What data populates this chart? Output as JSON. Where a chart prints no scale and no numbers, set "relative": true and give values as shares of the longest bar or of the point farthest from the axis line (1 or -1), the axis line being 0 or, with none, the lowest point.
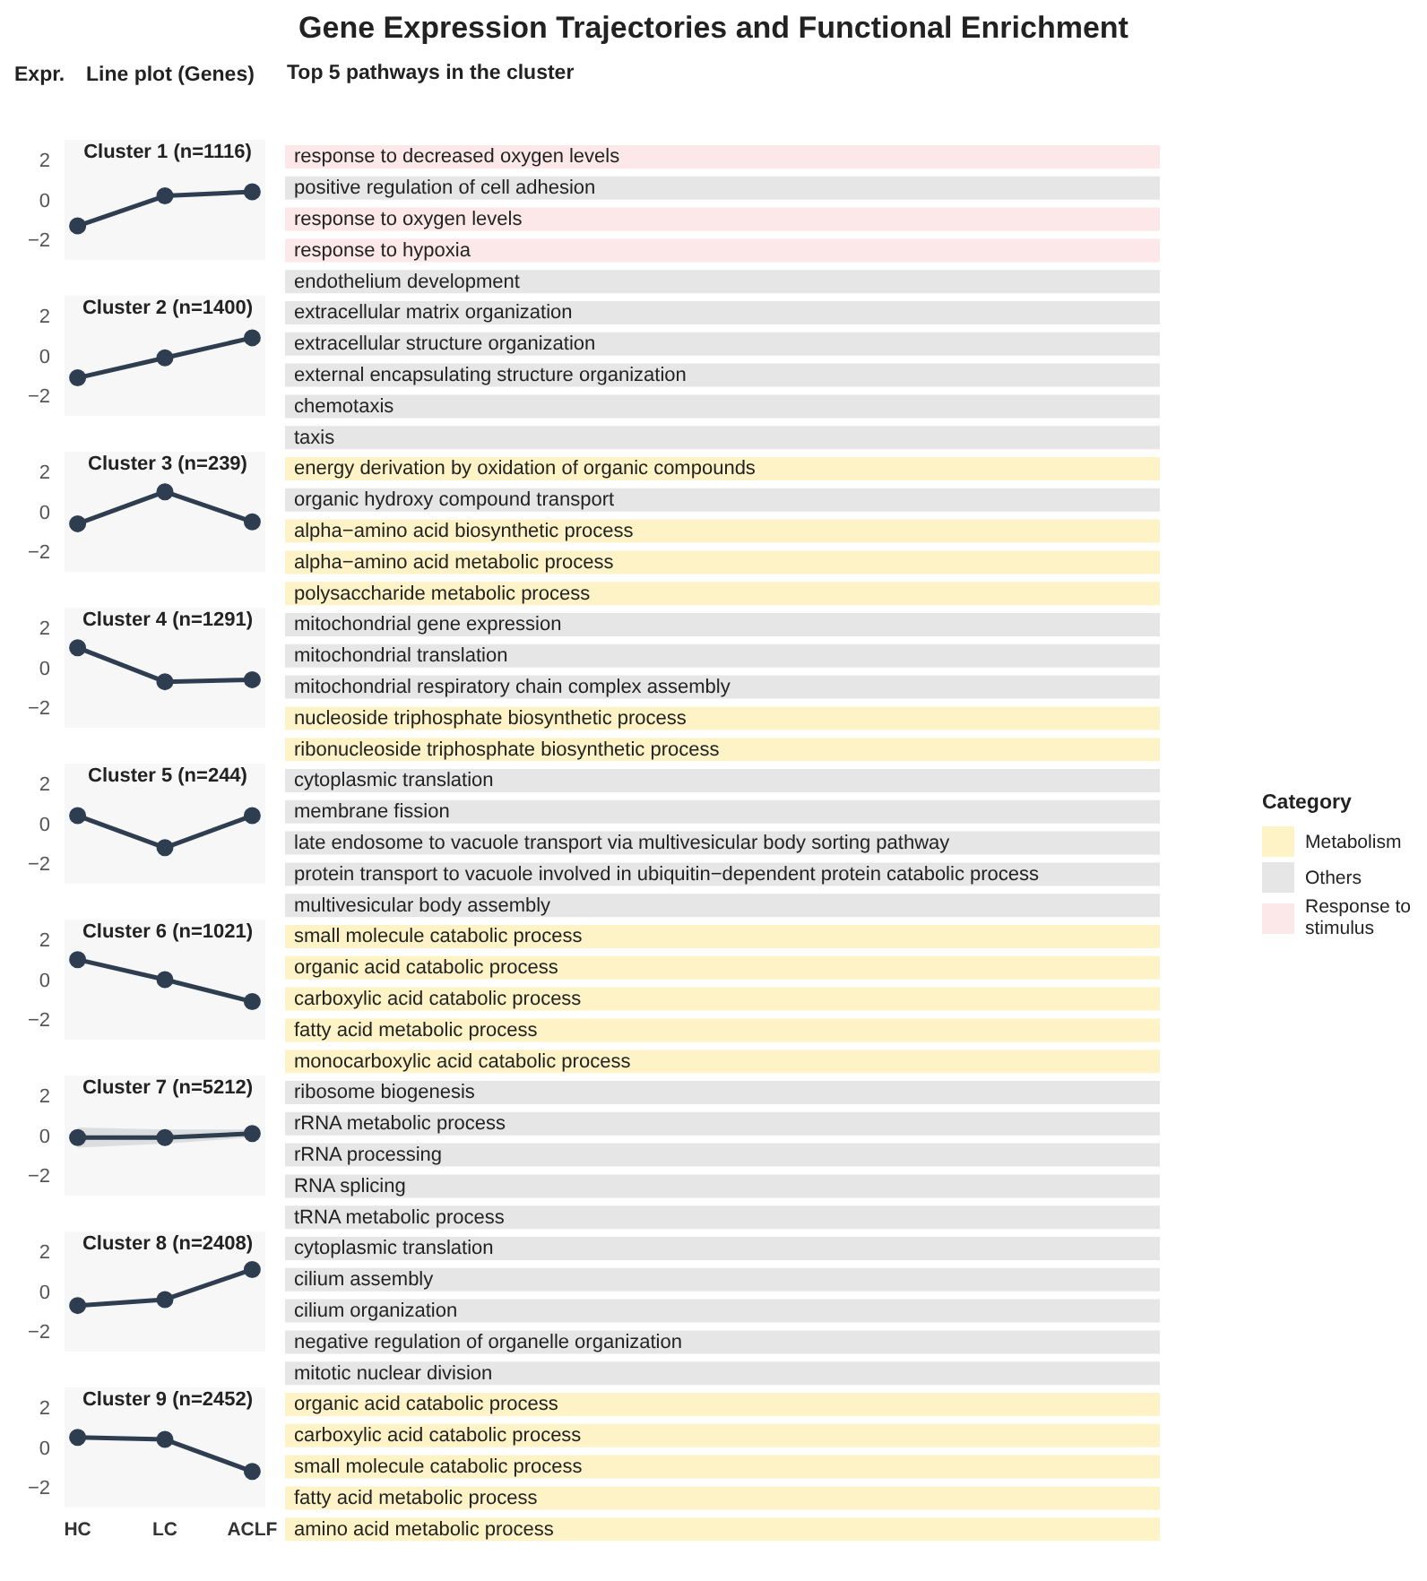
{
  "chart_data": [
    {
      "type": "bar",
      "orientation": "horizontal",
      "stacked": true,
      "relative": true,
      "title": "Gene Expression Trajectories and Functional Enrichment",
      "subtitle": "Top 5 pathways in the cluster",
      "legend_title": "Category",
      "legend": "right",
      "categories": [
        "response to decreased oxygen levels",
        "positive regulation of cell adhesion",
        "response to oxygen levels",
        "response to hypoxia",
        "endothelium development",
        "extracellular matrix organization",
        "extracellular structure organization",
        "external encapsulating structure organization",
        "chemotaxis",
        "taxis",
        "energy derivation by oxidation of organic compounds",
        "organic hydroxy compound transport",
        "alpha−amino acid biosynthetic process",
        "alpha−amino acid metabolic process",
        "polysaccharide metabolic process",
        "mitochondrial gene expression",
        "mitochondrial translation",
        "mitochondrial respiratory chain complex assembly",
        "nucleoside triphosphate biosynthetic process",
        "ribonucleoside triphosphate biosynthetic process",
        "cytoplasmic translation",
        "membrane fission",
        "late endosome to vacuole transport via multivesicular body sorting pathway",
        "protein transport to vacuole involved in ubiquitin−dependent protein catabolic process",
        "multivesicular body assembly",
        "small molecule catabolic process",
        "organic acid catabolic process",
        "carboxylic acid catabolic process",
        "fatty acid metabolic process",
        "monocarboxylic acid catabolic process",
        "ribosome biogenesis",
        "rRNA metabolic process",
        "rRNA processing",
        "RNA splicing",
        "tRNA metabolic process",
        "cytoplasmic translation",
        "cilium assembly",
        "cilium organization",
        "negative regulation of organelle organization",
        "mitotic nuclear division",
        "organic acid catabolic process",
        "carboxylic acid catabolic process",
        "small molecule catabolic process",
        "fatty acid metabolic process",
        "amino acid metabolic process"
      ],
      "series": [
        {
          "name": "Metabolism",
          "color": "#fdf3c6",
          "values": [
            null,
            null,
            null,
            null,
            null,
            null,
            null,
            null,
            null,
            null,
            1,
            null,
            1,
            1,
            1,
            null,
            null,
            null,
            1,
            1,
            null,
            null,
            null,
            null,
            null,
            1,
            1,
            1,
            1,
            1,
            null,
            null,
            null,
            null,
            null,
            null,
            null,
            null,
            null,
            null,
            1,
            1,
            1,
            1,
            1
          ]
        },
        {
          "name": "Others",
          "color": "#e6e6e6",
          "values": [
            null,
            1,
            null,
            null,
            1,
            1,
            1,
            1,
            1,
            1,
            null,
            1,
            null,
            null,
            null,
            1,
            1,
            1,
            null,
            null,
            1,
            1,
            1,
            1,
            1,
            null,
            null,
            null,
            null,
            null,
            1,
            1,
            1,
            1,
            1,
            1,
            1,
            1,
            1,
            1,
            null,
            null,
            null,
            null,
            null
          ]
        },
        {
          "name": "Response to stimulus",
          "color": "#fce8e8",
          "values": [
            1,
            null,
            1,
            1,
            null,
            null,
            null,
            null,
            null,
            null,
            null,
            null,
            null,
            null,
            null,
            null,
            null,
            null,
            null,
            null,
            null,
            null,
            null,
            null,
            null,
            null,
            null,
            null,
            null,
            null,
            null,
            null,
            null,
            null,
            null,
            null,
            null,
            null,
            null,
            null,
            null,
            null,
            null,
            null,
            null
          ]
        }
      ]
    },
    {
      "type": "line",
      "title": "Cluster 1 (n=1116)",
      "subtitle": "Line plot (Genes)",
      "ylabel": "Expr.",
      "categories": [
        null,
        null,
        null
      ],
      "values": [
        -1.3,
        0.2,
        0.4
      ],
      "color": "#2e3e50",
      "marker": "circle",
      "ylim": [
        -3,
        3
      ],
      "yticks": [
        -2,
        0,
        2
      ],
      "tick_labels": "y"
    },
    {
      "type": "line",
      "title": "Cluster 2 (n=1400)",
      "categories": [
        null,
        null,
        null
      ],
      "values": [
        -1.1,
        -0.1,
        0.9
      ],
      "color": "#2e3e50",
      "marker": "circle",
      "ylim": [
        -3,
        3
      ],
      "yticks": [
        -2,
        0,
        2
      ],
      "tick_labels": "y"
    },
    {
      "type": "line",
      "title": "Cluster 3 (n=239)",
      "categories": [
        null,
        null,
        null
      ],
      "values": [
        -0.6,
        1.0,
        -0.5
      ],
      "color": "#2e3e50",
      "marker": "circle",
      "ylim": [
        -3,
        3
      ],
      "yticks": [
        -2,
        0,
        2
      ],
      "tick_labels": "y"
    },
    {
      "type": "line",
      "title": "Cluster 4 (n=1291)",
      "categories": [
        null,
        null,
        null
      ],
      "values": [
        1.0,
        -0.7,
        -0.6
      ],
      "color": "#2e3e50",
      "marker": "circle",
      "ylim": [
        -3,
        3
      ],
      "yticks": [
        -2,
        0,
        2
      ],
      "tick_labels": "y"
    },
    {
      "type": "line",
      "title": "Cluster 5 (n=244)",
      "categories": [
        null,
        null,
        null
      ],
      "values": [
        0.4,
        -1.2,
        0.4
      ],
      "color": "#2e3e50",
      "marker": "circle",
      "ylim": [
        -3,
        3
      ],
      "yticks": [
        -2,
        0,
        2
      ],
      "tick_labels": "y"
    },
    {
      "type": "line",
      "title": "Cluster 6 (n=1021)",
      "categories": [
        null,
        null,
        null
      ],
      "values": [
        1.0,
        0.0,
        -1.1
      ],
      "color": "#2e3e50",
      "marker": "circle",
      "ylim": [
        -3,
        3
      ],
      "yticks": [
        -2,
        0,
        2
      ],
      "tick_labels": "y"
    },
    {
      "type": "line",
      "title": "Cluster 7 (n=5212)",
      "categories": [
        null,
        null,
        null
      ],
      "values": [
        -0.1,
        -0.1,
        0.1
      ],
      "lower": [
        -0.6,
        -0.4,
        -0.1
      ],
      "upper": [
        0.4,
        0.3,
        0.3
      ],
      "color": "#2e3e50",
      "marker": "circle",
      "ylim": [
        -3,
        3
      ],
      "yticks": [
        -2,
        0,
        2
      ],
      "tick_labels": "y"
    },
    {
      "type": "line",
      "title": "Cluster 8 (n=2408)",
      "categories": [
        null,
        null,
        null
      ],
      "values": [
        -0.7,
        -0.4,
        1.1
      ],
      "color": "#2e3e50",
      "marker": "circle",
      "ylim": [
        -3,
        3
      ],
      "yticks": [
        -2,
        0,
        2
      ],
      "tick_labels": "y"
    },
    {
      "type": "line",
      "title": "Cluster 9 (n=2452)",
      "categories": [
        "HC",
        "LC",
        "ACLF"
      ],
      "values": [
        0.5,
        0.4,
        -1.2
      ],
      "color": "#2e3e50",
      "marker": "circle",
      "ylim": [
        -3,
        3
      ],
      "yticks": [
        -2,
        0,
        2
      ]
    }
  ]
}
